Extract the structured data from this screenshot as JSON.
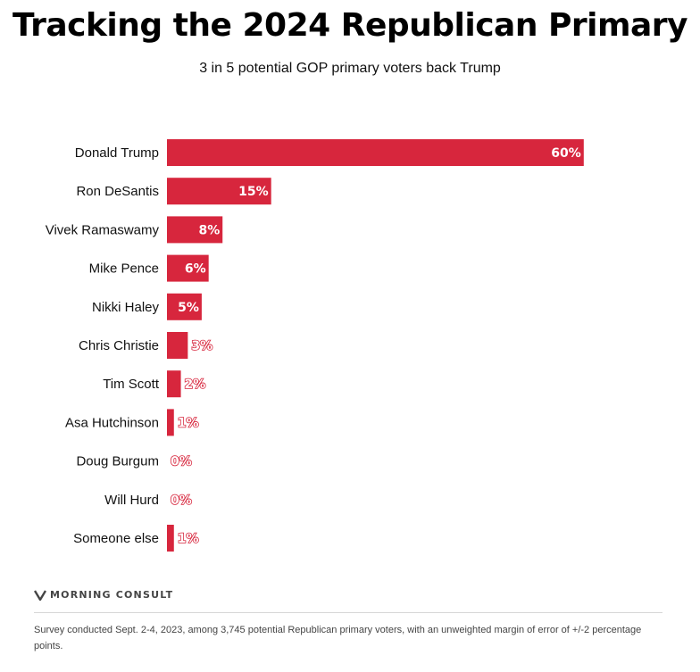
{
  "header": {
    "title": "Tracking the 2024 Republican Primary",
    "subtitle": "3 in 5 potential GOP primary voters back Trump"
  },
  "colors": {
    "bar": "#d7263d"
  },
  "chart_data": {
    "type": "bar",
    "orientation": "horizontal",
    "categories": [
      "Donald Trump",
      "Ron DeSantis",
      "Vivek Ramaswamy",
      "Mike Pence",
      "Nikki Haley",
      "Chris Christie",
      "Tim Scott",
      "Asa Hutchinson",
      "Doug Burgum",
      "Will Hurd",
      "Someone else"
    ],
    "values": [
      60,
      15,
      8,
      6,
      5,
      3,
      2,
      1,
      0,
      0,
      1
    ],
    "value_labels": [
      "60%",
      "15%",
      "8%",
      "6%",
      "5%",
      "3%",
      "2%",
      "1%",
      "0%",
      "0%",
      "1%"
    ],
    "xlim": [
      0,
      100
    ],
    "grid": false,
    "legend": "none"
  },
  "footer": {
    "logo_text": "MORNING CONSULT",
    "logo_icon": "morning-consult-logo-icon",
    "note": "Survey conducted Sept. 2-4, 2023, among 3,745 potential Republican primary voters, with an unweighted margin of error of +/-2 percentage points."
  }
}
